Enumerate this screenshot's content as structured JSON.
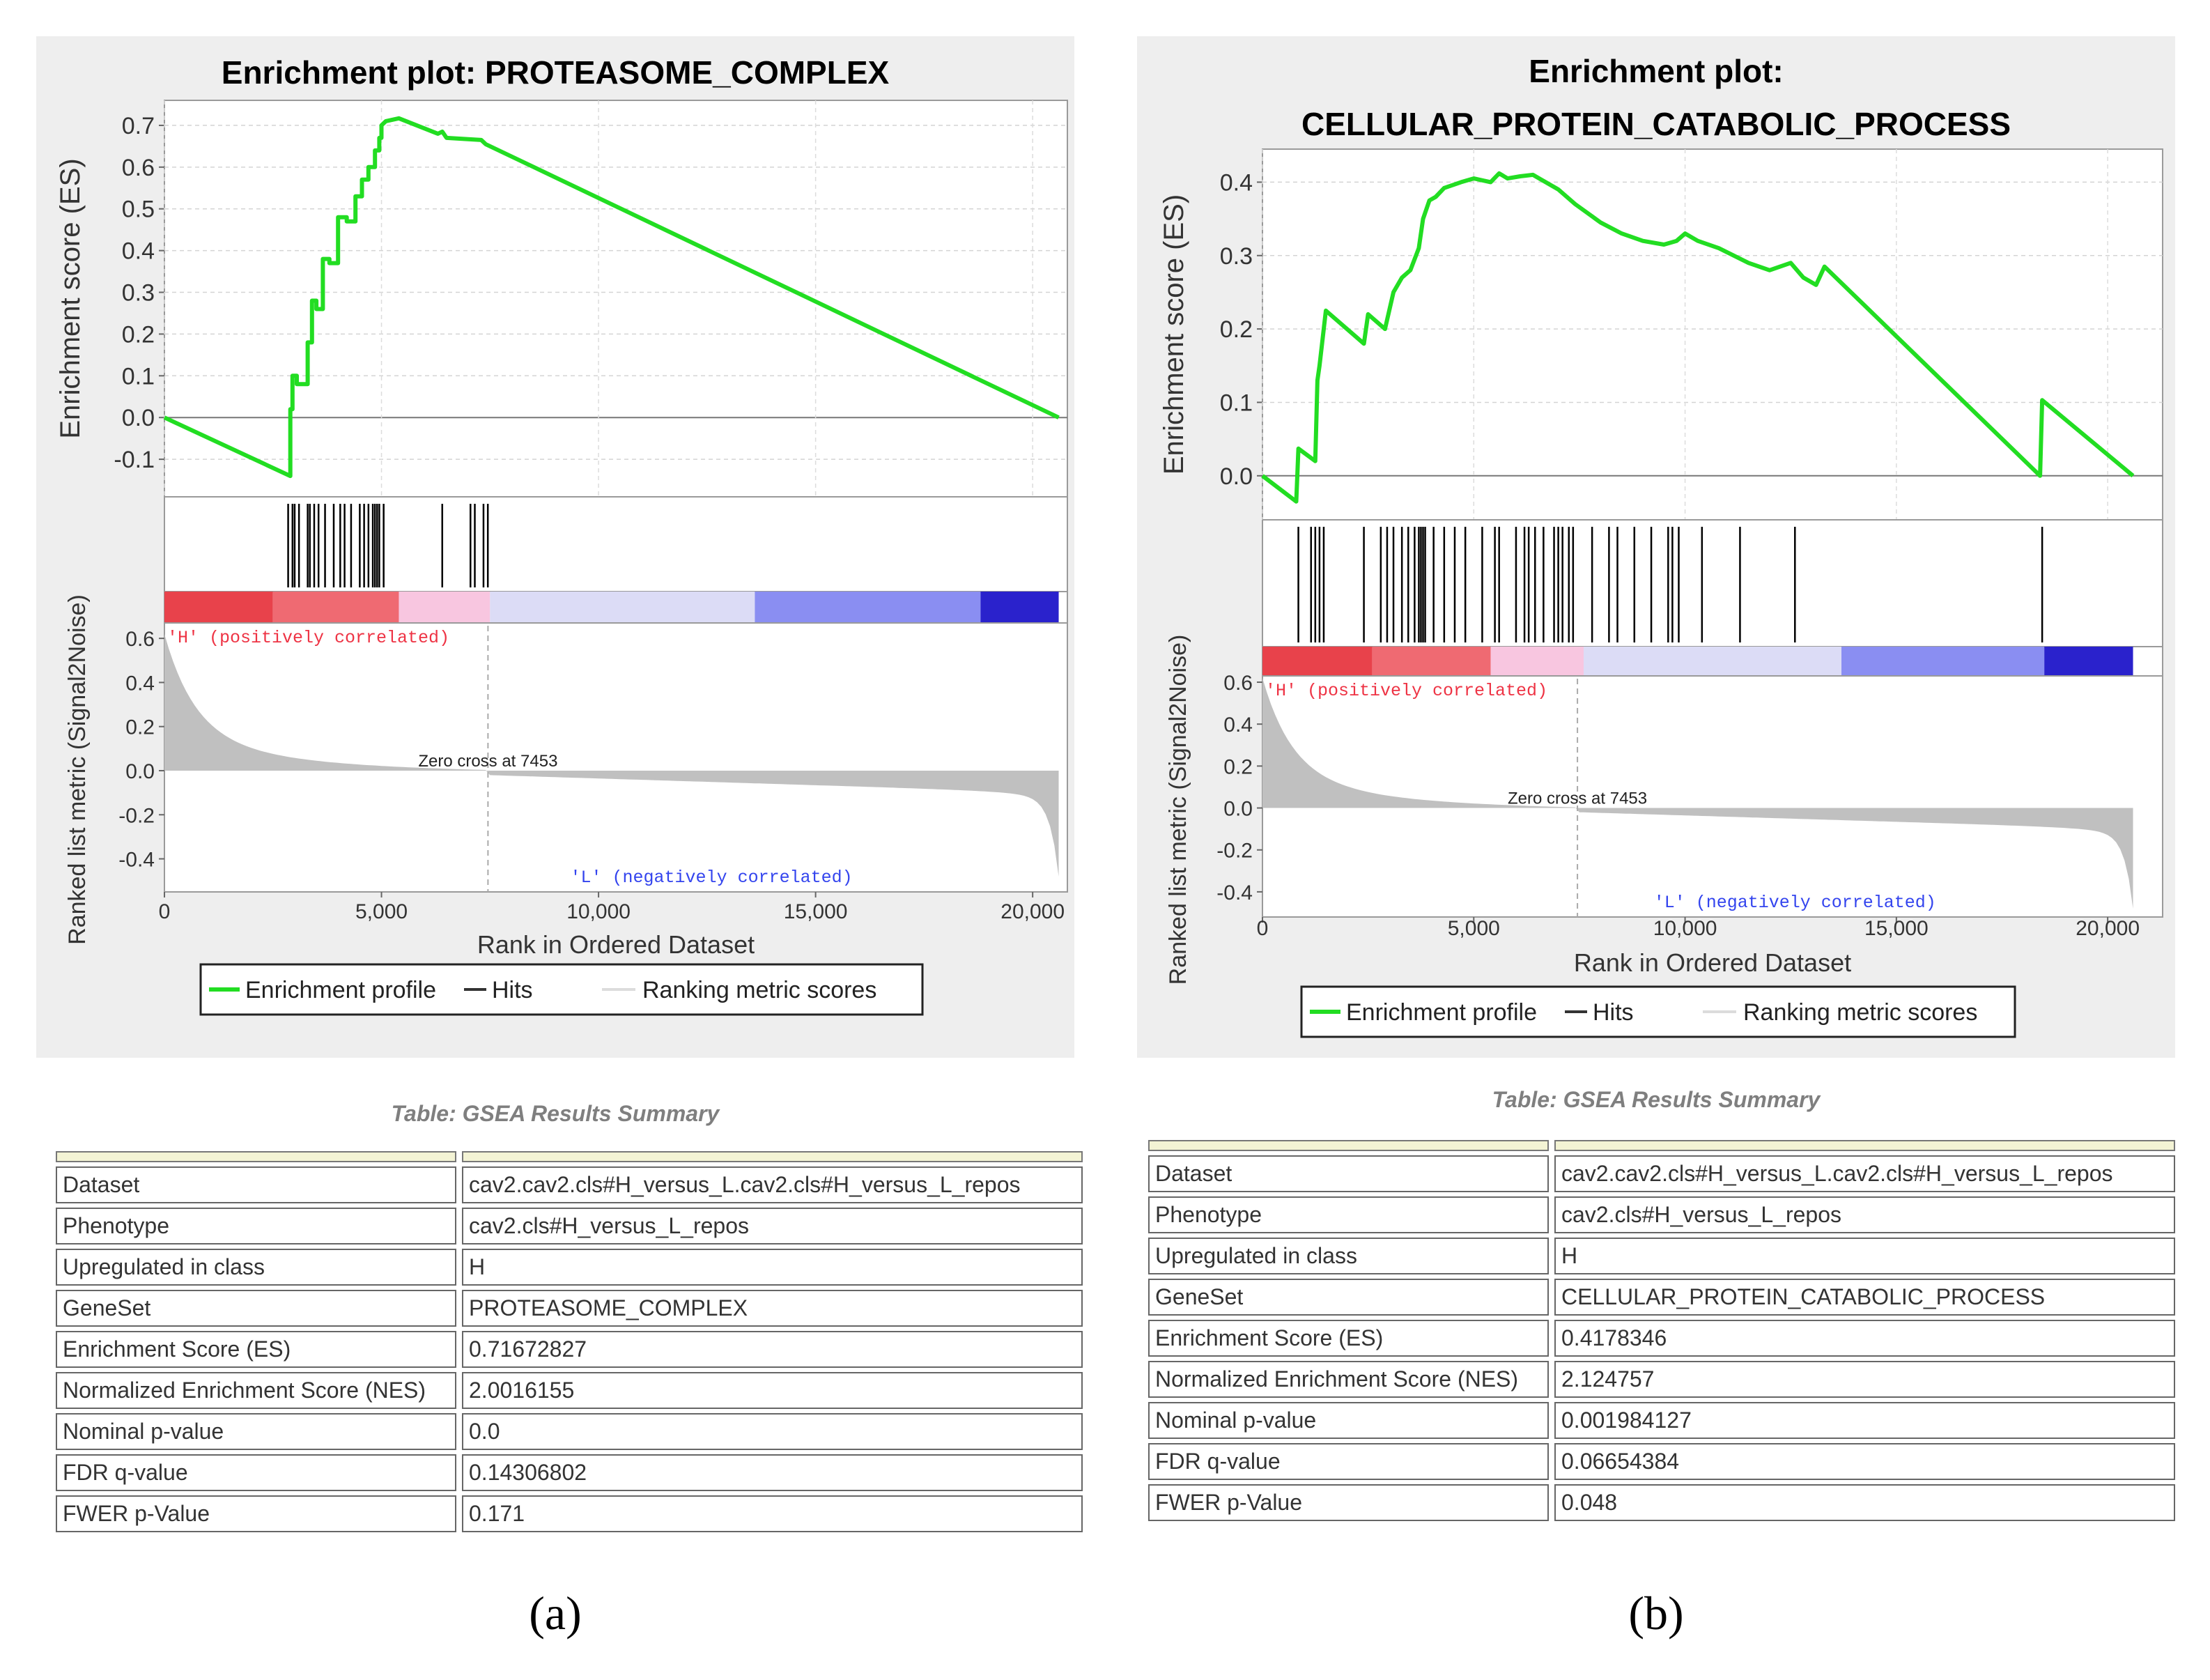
{
  "chart_data": [
    {
      "type": "line",
      "title_lines": [
        "Enrichment plot: PROTEASOME_COMPLEX"
      ],
      "ylabel_top": "Enrichment score (ES)",
      "ylabel_bottom": "Ranked list metric (Signal2Noise)",
      "xlabel": "Rank in Ordered Dataset",
      "xlim": [
        0,
        20800
      ],
      "es_ylim": [
        -0.19,
        0.76
      ],
      "es_ticks": [
        -0.1,
        0.0,
        0.1,
        0.2,
        0.3,
        0.4,
        0.5,
        0.6,
        0.7
      ],
      "es_tick_labels": [
        "-0.1",
        "0.0",
        "0.1",
        "0.2",
        "0.3",
        "0.4",
        "0.5",
        "0.6",
        "0.7"
      ],
      "metric_ylim": [
        -0.55,
        0.67
      ],
      "metric_ticks": [
        -0.4,
        -0.2,
        0.0,
        0.2,
        0.4,
        0.6
      ],
      "metric_tick_labels": [
        "-0.4",
        "-0.2",
        "0.0",
        "0.2",
        "0.4",
        "0.6"
      ],
      "x_ticks": [
        0,
        5000,
        10000,
        15000,
        20000
      ],
      "x_tick_labels": [
        "0",
        "5,000",
        "10,000",
        "15,000",
        "20,000"
      ],
      "n_genes": 20600,
      "es_profile": {
        "x": [
          0,
          2900,
          2900,
          2950,
          2950,
          3050,
          3050,
          3300,
          3300,
          3400,
          3400,
          3500,
          3500,
          3650,
          3650,
          3800,
          3800,
          4000,
          4000,
          4200,
          4200,
          4400,
          4400,
          4550,
          4550,
          4700,
          4700,
          4850,
          4850,
          4950,
          4950,
          5000,
          5000,
          5100,
          5400,
          6300,
          6400,
          6500,
          7300,
          7350,
          7400,
          20600
        ],
        "y": [
          0.0,
          -0.14,
          0.02,
          0.02,
          0.1,
          0.1,
          0.08,
          0.08,
          0.18,
          0.18,
          0.28,
          0.28,
          0.26,
          0.26,
          0.38,
          0.38,
          0.37,
          0.37,
          0.48,
          0.48,
          0.47,
          0.47,
          0.53,
          0.53,
          0.57,
          0.57,
          0.6,
          0.6,
          0.64,
          0.64,
          0.67,
          0.67,
          0.7,
          0.71,
          0.717,
          0.68,
          0.685,
          0.67,
          0.665,
          0.66,
          0.655,
          0.0
        ]
      },
      "hits": [
        2850,
        2950,
        3000,
        3100,
        3300,
        3350,
        3450,
        3550,
        3700,
        3900,
        4050,
        4150,
        4300,
        4500,
        4600,
        4700,
        4800,
        4850,
        4900,
        4950,
        5050,
        6400,
        7050,
        7150,
        7350,
        7450
      ],
      "zero_cross_label": "Zero cross at 7453",
      "zero_cross": 7453,
      "pos_label": "'H' (positively correlated)",
      "neg_label": "'L' (negatively correlated)",
      "heatbar_stops": [
        [
          0,
          "#e8424b"
        ],
        [
          2500,
          "#ef6a72"
        ],
        [
          5400,
          "#f8c6e0"
        ],
        [
          7500,
          "#dcdcf6"
        ],
        [
          13600,
          "#8a8ef2"
        ],
        [
          18800,
          "#2a22cc"
        ],
        [
          20600,
          "#3a1aa5"
        ]
      ],
      "legend": [
        "Enrichment profile",
        "Hits",
        "Ranking metric scores"
      ]
    },
    {
      "type": "line",
      "title_lines": [
        "Enrichment plot:",
        "CELLULAR_PROTEIN_CATABOLIC_PROCESS"
      ],
      "ylabel_top": "Enrichment score (ES)",
      "ylabel_bottom": "Ranked list metric (Signal2Noise)",
      "xlabel": "Rank in Ordered Dataset",
      "xlim": [
        0,
        21300
      ],
      "es_ylim": [
        -0.06,
        0.445
      ],
      "es_ticks": [
        0.0,
        0.1,
        0.2,
        0.3,
        0.4
      ],
      "es_tick_labels": [
        "0.0",
        "0.1",
        "0.2",
        "0.3",
        "0.4"
      ],
      "metric_ylim": [
        -0.52,
        0.63
      ],
      "metric_ticks": [
        -0.4,
        -0.2,
        0.0,
        0.2,
        0.4,
        0.6
      ],
      "metric_tick_labels": [
        "-0.4",
        "-0.2",
        "0.0",
        "0.2",
        "0.4",
        "0.6"
      ],
      "x_ticks": [
        0,
        5000,
        10000,
        15000,
        20000
      ],
      "x_tick_labels": [
        "0",
        "5,000",
        "10,000",
        "15,000",
        "20,000"
      ],
      "n_genes": 20600,
      "es_profile": {
        "x": [
          0,
          800,
          850,
          1250,
          1300,
          1350,
          1500,
          2400,
          2500,
          2900,
          3100,
          3300,
          3500,
          3700,
          3800,
          3950,
          4100,
          4300,
          4700,
          5000,
          5400,
          5600,
          5800,
          6100,
          6400,
          6700,
          7000,
          7400,
          8000,
          8500,
          9000,
          9500,
          9800,
          10000,
          10300,
          10800,
          11500,
          12000,
          12500,
          12800,
          13100,
          13300,
          18400,
          18450,
          20600
        ],
        "y": [
          0.0,
          -0.035,
          0.037,
          0.02,
          0.13,
          0.15,
          0.225,
          0.18,
          0.22,
          0.2,
          0.25,
          0.27,
          0.28,
          0.31,
          0.35,
          0.375,
          0.38,
          0.392,
          0.4,
          0.405,
          0.4,
          0.412,
          0.405,
          0.408,
          0.41,
          0.4,
          0.39,
          0.37,
          0.345,
          0.33,
          0.32,
          0.315,
          0.32,
          0.33,
          0.32,
          0.31,
          0.29,
          0.28,
          0.29,
          0.27,
          0.26,
          0.285,
          0.0,
          0.103,
          0.0
        ]
      },
      "hits": [
        850,
        1150,
        1250,
        1350,
        1450,
        2400,
        2800,
        2950,
        3100,
        3300,
        3450,
        3600,
        3700,
        3750,
        3800,
        3850,
        4050,
        4300,
        4550,
        4800,
        5200,
        5500,
        5600,
        6000,
        6200,
        6300,
        6450,
        6650,
        6900,
        7000,
        7100,
        7250,
        7350,
        7800,
        8200,
        8400,
        8800,
        9200,
        9600,
        9700,
        9850,
        10400,
        11300,
        12600,
        18450
      ],
      "zero_cross_label": "Zero cross at 7453",
      "zero_cross": 7453,
      "pos_label": "'H' (positively correlated)",
      "neg_label": "'L' (negatively correlated)",
      "heatbar_stops": [
        [
          0,
          "#e8424b"
        ],
        [
          2600,
          "#ef6a72"
        ],
        [
          5400,
          "#f8c6e0"
        ],
        [
          7600,
          "#dcdcf6"
        ],
        [
          13700,
          "#8a8ef2"
        ],
        [
          18500,
          "#2a22cc"
        ],
        [
          20600,
          "#3a1aa5"
        ]
      ],
      "legend": [
        "Enrichment profile",
        "Hits",
        "Ranking metric scores"
      ]
    }
  ],
  "tables": {
    "caption": "Table: GSEA Results Summary",
    "a": {
      "rows": [
        [
          "Dataset",
          "cav2.cav2.cls#H_versus_L.cav2.cls#H_versus_L_repos"
        ],
        [
          "Phenotype",
          "cav2.cls#H_versus_L_repos"
        ],
        [
          "Upregulated in class",
          "H"
        ],
        [
          "GeneSet",
          "PROTEASOME_COMPLEX"
        ],
        [
          "Enrichment Score (ES)",
          "0.71672827"
        ],
        [
          "Normalized Enrichment Score (NES)",
          "2.0016155"
        ],
        [
          "Nominal p-value",
          "0.0"
        ],
        [
          "FDR q-value",
          "0.14306802"
        ],
        [
          "FWER p-Value",
          "0.171"
        ]
      ]
    },
    "b": {
      "rows": [
        [
          "Dataset",
          "cav2.cav2.cls#H_versus_L.cav2.cls#H_versus_L_repos"
        ],
        [
          "Phenotype",
          "cav2.cls#H_versus_L_repos"
        ],
        [
          "Upregulated in class",
          "H"
        ],
        [
          "GeneSet",
          "CELLULAR_PROTEIN_CATABOLIC_PROCESS"
        ],
        [
          "Enrichment Score (ES)",
          "0.4178346"
        ],
        [
          "Normalized Enrichment Score (NES)",
          "2.124757"
        ],
        [
          "Nominal p-value",
          "0.001984127"
        ],
        [
          "FDR q-value",
          "0.06654384"
        ],
        [
          "FWER p-Value",
          "0.048"
        ]
      ]
    }
  },
  "panel_labels": {
    "a": "(a)",
    "b": "(b)"
  },
  "colors": {
    "profile": "#22dd22",
    "hits": "#000000",
    "metric_fill": "#c0c0c0",
    "pos_text": "#ee3344",
    "neg_text": "#3344ee",
    "panel_bg": "#eeeeee"
  }
}
